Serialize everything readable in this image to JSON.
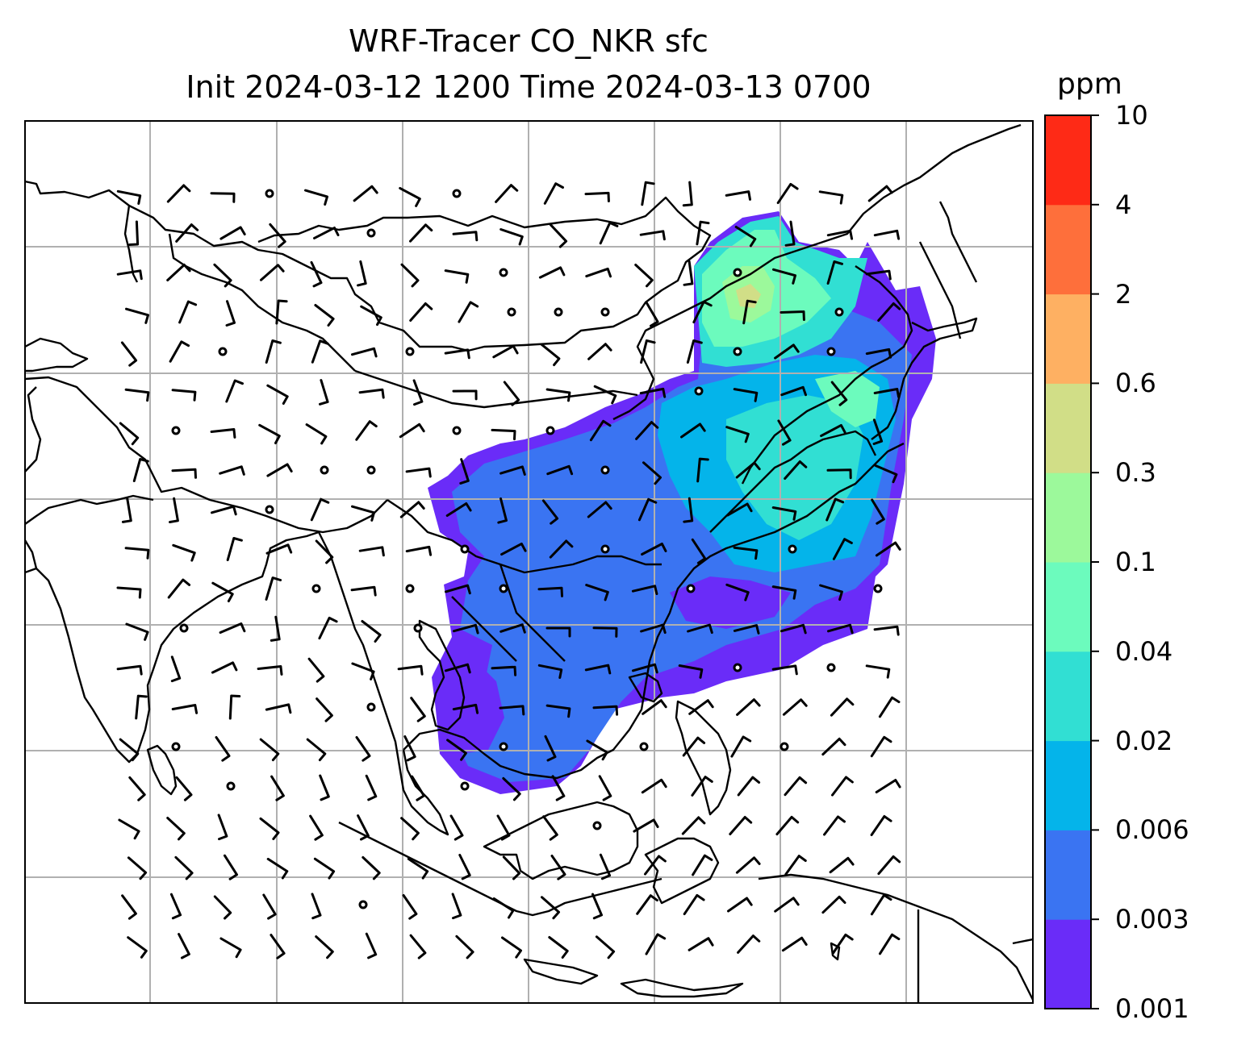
{
  "title": {
    "line1": "WRF-Tracer CO_NKR sfc",
    "line2": "Init 2024-03-12 1200 Time 2024-03-13 0700"
  },
  "colorbar": {
    "unit": "ppm",
    "levels": [
      "0.001",
      "0.003",
      "0.006",
      "0.02",
      "0.04",
      "0.1",
      "0.3",
      "0.6",
      "2",
      "4",
      "10"
    ],
    "colors": [
      "#6a2cf8",
      "#3a74f2",
      "#04b4ea",
      "#31dfd3",
      "#6cfbbd",
      "#9cf99b",
      "#d1de87",
      "#feb062",
      "#fe6f3b",
      "#fe2a16"
    ]
  },
  "map": {
    "gridlines": true,
    "background": "#ffffff",
    "line_color": "#000000",
    "grid_color": "#b0b0b0"
  }
}
